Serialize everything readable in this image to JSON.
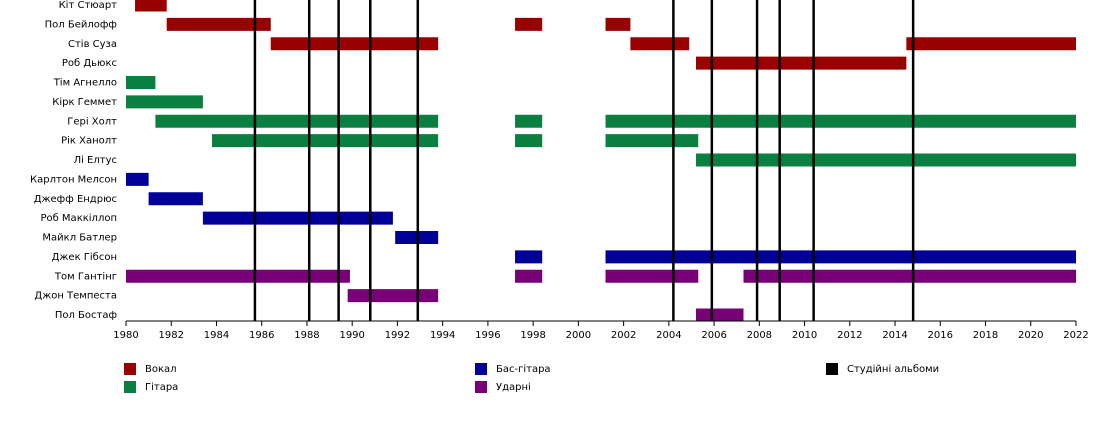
{
  "chart_data": {
    "type": "timeline",
    "categories": [
      "Кіт Стюарт",
      "Пол Бейлофф",
      "Стів Суза",
      "Роб Дьюкс",
      "Тім Агнелло",
      "Кірк Геммет",
      "Гері Холт",
      "Рік Ханолт",
      "Лі Елтус",
      "Карлтон Мелсон",
      "Джефф Ендрюс",
      "Роб Маккіллоп",
      "Майкл Батлер",
      "Джек Гібсон",
      "Том Гантінг",
      "Джон Темпеста",
      "Пол Бостаф"
    ],
    "series": [
      {
        "name": "Вокал",
        "color": "#990000",
        "spans": [
          {
            "category": "Кіт Стюарт",
            "start": 1980.4,
            "end": 1981.8
          },
          {
            "category": "Пол Бейлофф",
            "start": 1981.8,
            "end": 1986.4
          },
          {
            "category": "Пол Бейлофф",
            "start": 1997.2,
            "end": 1998.4
          },
          {
            "category": "Пол Бейлофф",
            "start": 2001.2,
            "end": 2002.3
          },
          {
            "category": "Стів Суза",
            "start": 1986.4,
            "end": 1993.8
          },
          {
            "category": "Стів Суза",
            "start": 2002.3,
            "end": 2004.9
          },
          {
            "category": "Стів Суза",
            "start": 2014.5,
            "end": 2022
          },
          {
            "category": "Роб Дьюкс",
            "start": 2005.2,
            "end": 2014.5
          }
        ]
      },
      {
        "name": "Гітара",
        "color": "#0a8040",
        "spans": [
          {
            "category": "Тім Агнелло",
            "start": 1980,
            "end": 1981.3
          },
          {
            "category": "Кірк Геммет",
            "start": 1980,
            "end": 1983.4
          },
          {
            "category": "Гері Холт",
            "start": 1981.3,
            "end": 1993.8
          },
          {
            "category": "Гері Холт",
            "start": 1997.2,
            "end": 1998.4
          },
          {
            "category": "Гері Холт",
            "start": 2001.2,
            "end": 2022
          },
          {
            "category": "Рік Ханолт",
            "start": 1983.8,
            "end": 1993.8
          },
          {
            "category": "Рік Ханолт",
            "start": 1997.2,
            "end": 1998.4
          },
          {
            "category": "Рік Ханолт",
            "start": 2001.2,
            "end": 2005.3
          },
          {
            "category": "Лі Елтус",
            "start": 2005.2,
            "end": 2022
          }
        ]
      },
      {
        "name": "Бас-гітара",
        "color": "#000099",
        "spans": [
          {
            "category": "Карлтон Мелсон",
            "start": 1980,
            "end": 1981
          },
          {
            "category": "Джефф Ендрюс",
            "start": 1981,
            "end": 1983.4
          },
          {
            "category": "Роб Маккіллоп",
            "start": 1983.4,
            "end": 1991.8
          },
          {
            "category": "Майкл Батлер",
            "start": 1991.9,
            "end": 1993.8
          },
          {
            "category": "Джек Гібсон",
            "start": 1997.2,
            "end": 1998.4
          },
          {
            "category": "Джек Гібсон",
            "start": 2001.2,
            "end": 2022
          }
        ]
      },
      {
        "name": "Ударні",
        "color": "#770077",
        "spans": [
          {
            "category": "Том Гантінг",
            "start": 1980,
            "end": 1989.9
          },
          {
            "category": "Том Гантінг",
            "start": 1997.2,
            "end": 1998.4
          },
          {
            "category": "Том Гантінг",
            "start": 2001.2,
            "end": 2005.3
          },
          {
            "category": "Том Гантінг",
            "start": 2007.3,
            "end": 2022
          },
          {
            "category": "Джон Темпеста",
            "start": 1989.8,
            "end": 1993.8
          },
          {
            "category": "Пол Бостаф",
            "start": 2005.2,
            "end": 2007.3
          }
        ]
      }
    ],
    "albums": {
      "name": "Студійні альбоми",
      "color": "#000000",
      "x": [
        1985.7,
        1988.1,
        1989.4,
        1990.8,
        1992.9,
        2004.2,
        2005.9,
        2007.9,
        2008.9,
        2010.4,
        2014.8
      ]
    },
    "xlim": [
      1980,
      2022
    ],
    "xticks": [
      1980,
      1982,
      1984,
      1986,
      1988,
      1990,
      1992,
      1994,
      1996,
      1998,
      2000,
      2002,
      2004,
      2006,
      2008,
      2010,
      2012,
      2014,
      2016,
      2018,
      2020,
      2022
    ]
  }
}
